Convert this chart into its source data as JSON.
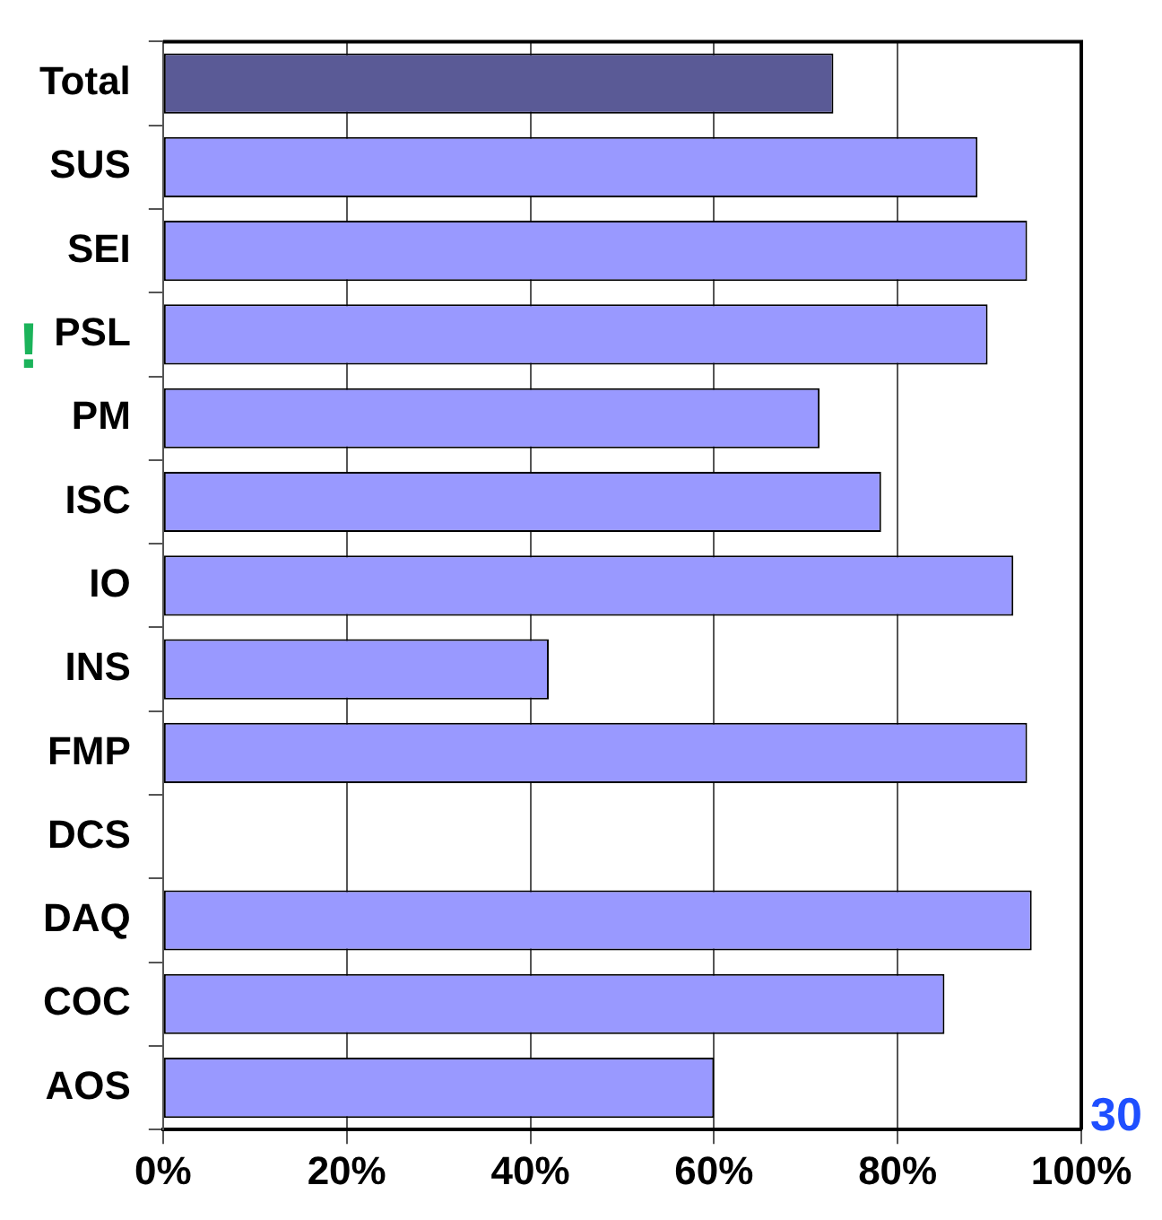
{
  "chart_data": {
    "type": "bar",
    "orientation": "horizontal",
    "categories": [
      "Total",
      "SUS",
      "SEI",
      "PSL",
      "PM",
      "ISC",
      "IO",
      "INS",
      "FMP",
      "DCS",
      "DAQ",
      "COC",
      "AOS"
    ],
    "values": [
      73,
      88.7,
      94.1,
      89.8,
      71.5,
      78.2,
      92.6,
      42,
      94.1,
      null,
      94.6,
      85.1,
      60
    ],
    "colors": [
      "#5a5a96",
      "#9999ff",
      "#9999ff",
      "#9999ff",
      "#9999ff",
      "#9999ff",
      "#9999ff",
      "#9999ff",
      "#9999ff",
      "#9999ff",
      "#9999ff",
      "#9999ff",
      "#9999ff"
    ],
    "xlim": [
      0,
      100
    ],
    "xticks": [
      {
        "value": 0,
        "label": "0%"
      },
      {
        "value": 20,
        "label": "20%"
      },
      {
        "value": 40,
        "label": "40%"
      },
      {
        "value": 60,
        "label": "60%"
      },
      {
        "value": 80,
        "label": "80%"
      },
      {
        "value": 100,
        "label": "100%"
      }
    ],
    "grid": "x",
    "legend": false,
    "annotations": [
      "!",
      "30"
    ]
  }
}
